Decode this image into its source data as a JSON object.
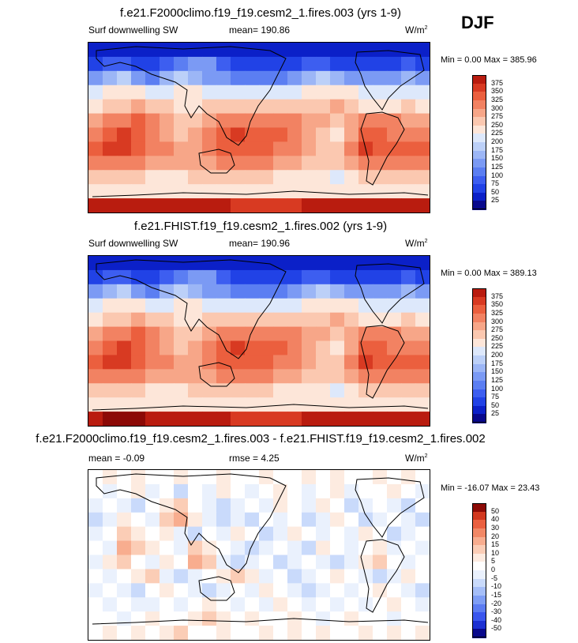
{
  "season": "DJF",
  "colors": {
    "sw_palette": [
      "#08088c",
      "#0b20c8",
      "#2142e6",
      "#3d5ef0",
      "#5b7ef2",
      "#7b9af4",
      "#9cb6f6",
      "#bcd0f8",
      "#dde8fb",
      "#fde6d9",
      "#fbc8b0",
      "#f7a688",
      "#f28262",
      "#eb5f3e",
      "#d83a22",
      "#b91c0f",
      "#8c0a06"
    ],
    "diff_palette": [
      "#08088c",
      "#1c30d2",
      "#3a56ee",
      "#5c7cf2",
      "#7f9ef5",
      "#a5bef8",
      "#c9dafb",
      "#eaf1fd",
      "#ffffff",
      "#fdebe0",
      "#fbcdb6",
      "#f8ad8f",
      "#f28866",
      "#ea6040",
      "#d2381f",
      "#8c0a06"
    ],
    "coast": "#000000"
  },
  "chart_data": [
    {
      "type": "heatmap",
      "name": "panel-1",
      "title": "f.e21.F2000climo.f19_f19.cesm2_1.fires.003 (yrs 1-9)",
      "variable": "Surf downwelling SW",
      "mean_label": "mean= 190.86",
      "units": "W/m",
      "units_sup": "2",
      "minmax_label": "Min =   0.00 Max = 385.96",
      "colorbar_labels": [
        "375",
        "350",
        "325",
        "300",
        "275",
        "250",
        "225",
        "200",
        "175",
        "150",
        "125",
        "100",
        "75",
        "50",
        "25"
      ],
      "grid": [
        [
          1,
          1,
          1,
          1,
          1,
          1,
          1,
          1,
          1,
          1,
          1,
          1,
          1,
          1,
          1,
          1,
          1,
          1,
          1,
          1,
          1,
          1,
          1,
          1
        ],
        [
          2,
          3,
          3,
          2,
          2,
          3,
          4,
          5,
          5,
          3,
          2,
          2,
          2,
          2,
          2,
          3,
          3,
          2,
          2,
          2,
          2,
          2,
          3,
          2
        ],
        [
          5,
          6,
          7,
          5,
          4,
          6,
          7,
          6,
          5,
          5,
          4,
          4,
          4,
          4,
          5,
          6,
          7,
          6,
          5,
          5,
          5,
          5,
          6,
          5
        ],
        [
          8,
          9,
          9,
          9,
          8,
          8,
          9,
          9,
          8,
          8,
          8,
          8,
          8,
          8,
          8,
          9,
          9,
          9,
          9,
          8,
          8,
          8,
          8,
          8
        ],
        [
          9,
          10,
          10,
          11,
          10,
          10,
          9,
          9,
          10,
          10,
          10,
          10,
          10,
          10,
          10,
          10,
          10,
          11,
          10,
          9,
          9,
          9,
          10,
          9
        ],
        [
          11,
          12,
          12,
          13,
          12,
          11,
          10,
          10,
          11,
          12,
          12,
          12,
          12,
          12,
          12,
          11,
          11,
          10,
          11,
          12,
          12,
          12,
          11,
          11
        ],
        [
          12,
          13,
          14,
          13,
          12,
          11,
          10,
          11,
          12,
          13,
          14,
          13,
          13,
          13,
          12,
          11,
          10,
          9,
          11,
          13,
          13,
          12,
          12,
          12
        ],
        [
          13,
          14,
          14,
          13,
          12,
          12,
          11,
          11,
          12,
          13,
          13,
          13,
          13,
          12,
          12,
          11,
          10,
          10,
          12,
          14,
          13,
          13,
          13,
          13
        ],
        [
          12,
          12,
          12,
          12,
          11,
          11,
          11,
          11,
          11,
          12,
          12,
          12,
          12,
          11,
          11,
          10,
          10,
          10,
          11,
          12,
          12,
          12,
          12,
          12
        ],
        [
          10,
          10,
          10,
          10,
          9,
          9,
          9,
          10,
          10,
          10,
          10,
          10,
          10,
          9,
          9,
          9,
          9,
          8,
          9,
          10,
          10,
          10,
          10,
          10
        ],
        [
          9,
          9,
          9,
          9,
          9,
          9,
          9,
          9,
          9,
          9,
          9,
          9,
          9,
          9,
          9,
          9,
          9,
          9,
          9,
          9,
          9,
          9,
          9,
          9
        ],
        [
          15,
          15,
          15,
          15,
          15,
          15,
          15,
          15,
          15,
          15,
          14,
          14,
          14,
          14,
          14,
          15,
          15,
          15,
          15,
          15,
          15,
          15,
          15,
          15
        ]
      ]
    },
    {
      "type": "heatmap",
      "name": "panel-2",
      "title": "f.e21.FHIST.f19_f19.cesm2_1.fires.002 (yrs 1-9)",
      "variable": "Surf downwelling SW",
      "mean_label": "mean= 190.96",
      "units": "W/m",
      "units_sup": "2",
      "minmax_label": "Min =   0.00 Max = 389.13",
      "colorbar_labels": [
        "375",
        "350",
        "325",
        "300",
        "275",
        "250",
        "225",
        "200",
        "175",
        "150",
        "125",
        "100",
        "75",
        "50",
        "25"
      ],
      "grid": [
        [
          1,
          1,
          1,
          1,
          1,
          1,
          1,
          1,
          1,
          1,
          1,
          1,
          1,
          1,
          1,
          1,
          1,
          1,
          1,
          1,
          1,
          1,
          1,
          1
        ],
        [
          2,
          3,
          3,
          2,
          2,
          3,
          4,
          5,
          5,
          3,
          2,
          2,
          2,
          2,
          2,
          3,
          3,
          2,
          2,
          2,
          2,
          2,
          3,
          2
        ],
        [
          5,
          6,
          7,
          5,
          4,
          6,
          7,
          6,
          5,
          5,
          4,
          4,
          4,
          4,
          5,
          6,
          7,
          6,
          5,
          5,
          5,
          5,
          6,
          5
        ],
        [
          8,
          9,
          9,
          9,
          8,
          8,
          9,
          9,
          8,
          8,
          8,
          8,
          8,
          8,
          8,
          9,
          9,
          9,
          9,
          8,
          8,
          8,
          8,
          8
        ],
        [
          9,
          10,
          10,
          11,
          10,
          10,
          9,
          9,
          10,
          10,
          10,
          10,
          10,
          10,
          10,
          10,
          10,
          11,
          10,
          9,
          9,
          9,
          10,
          9
        ],
        [
          11,
          12,
          12,
          13,
          12,
          11,
          10,
          10,
          11,
          12,
          12,
          12,
          12,
          12,
          12,
          11,
          11,
          10,
          11,
          12,
          12,
          12,
          11,
          11
        ],
        [
          12,
          13,
          14,
          13,
          12,
          11,
          10,
          11,
          12,
          13,
          14,
          13,
          13,
          13,
          12,
          11,
          10,
          9,
          11,
          13,
          13,
          12,
          12,
          12
        ],
        [
          13,
          14,
          14,
          13,
          12,
          12,
          11,
          11,
          12,
          13,
          13,
          13,
          13,
          12,
          12,
          11,
          10,
          10,
          12,
          14,
          13,
          13,
          13,
          13
        ],
        [
          12,
          12,
          12,
          12,
          11,
          11,
          11,
          11,
          11,
          12,
          12,
          12,
          12,
          11,
          11,
          10,
          10,
          10,
          11,
          12,
          12,
          12,
          12,
          12
        ],
        [
          10,
          10,
          10,
          10,
          9,
          9,
          9,
          10,
          10,
          10,
          10,
          10,
          10,
          9,
          9,
          9,
          9,
          8,
          9,
          10,
          10,
          10,
          10,
          10
        ],
        [
          9,
          9,
          9,
          9,
          9,
          9,
          9,
          9,
          9,
          9,
          9,
          9,
          9,
          9,
          9,
          9,
          9,
          9,
          9,
          9,
          9,
          9,
          9,
          9
        ],
        [
          15,
          16,
          16,
          16,
          15,
          15,
          15,
          15,
          15,
          15,
          14,
          14,
          14,
          14,
          14,
          15,
          15,
          15,
          15,
          15,
          15,
          15,
          15,
          15
        ]
      ]
    },
    {
      "type": "heatmap",
      "name": "panel-3",
      "title": "f.e21.F2000climo.f19_f19.cesm2_1.fires.003 - f.e21.FHIST.f19_f19.cesm2_1.fires.002",
      "mean_label": "mean =  -0.09",
      "rmse_label": "rmse =   4.25",
      "units": "W/m",
      "units_sup": "2",
      "minmax_label": "Min = -16.07 Max =  23.43",
      "colorbar_labels": [
        "50",
        "40",
        "30",
        "20",
        "15",
        "10",
        "5",
        "0",
        "-5",
        "-10",
        "-15",
        "-20",
        "-30",
        "-40",
        "-50"
      ],
      "grid": [
        [
          8,
          9,
          8,
          9,
          8,
          8,
          9,
          8,
          8,
          9,
          8,
          8,
          9,
          8,
          8,
          9,
          8,
          9,
          8,
          8,
          9,
          8,
          9,
          8
        ],
        [
          8,
          7,
          8,
          9,
          7,
          8,
          6,
          8,
          7,
          9,
          8,
          7,
          8,
          9,
          8,
          7,
          8,
          9,
          7,
          8,
          8,
          9,
          8,
          7
        ],
        [
          7,
          8,
          7,
          6,
          8,
          9,
          10,
          8,
          7,
          6,
          7,
          8,
          7,
          9,
          8,
          7,
          9,
          8,
          6,
          7,
          8,
          7,
          6,
          8
        ],
        [
          6,
          7,
          9,
          8,
          7,
          10,
          11,
          9,
          7,
          6,
          7,
          6,
          8,
          7,
          8,
          6,
          7,
          9,
          8,
          6,
          7,
          8,
          7,
          6
        ],
        [
          7,
          8,
          10,
          9,
          8,
          9,
          7,
          6,
          8,
          7,
          9,
          8,
          6,
          7,
          9,
          8,
          7,
          8,
          7,
          9,
          8,
          6,
          7,
          8
        ],
        [
          8,
          7,
          11,
          10,
          9,
          8,
          7,
          10,
          9,
          8,
          7,
          6,
          7,
          8,
          7,
          6,
          9,
          8,
          7,
          8,
          9,
          7,
          8,
          7
        ],
        [
          7,
          9,
          10,
          8,
          7,
          9,
          8,
          11,
          10,
          7,
          6,
          7,
          8,
          6,
          7,
          8,
          7,
          6,
          7,
          9,
          10,
          8,
          7,
          8
        ],
        [
          8,
          7,
          8,
          9,
          10,
          7,
          6,
          7,
          8,
          9,
          10,
          9,
          7,
          8,
          6,
          7,
          8,
          9,
          8,
          7,
          6,
          7,
          9,
          8
        ],
        [
          7,
          8,
          7,
          6,
          8,
          9,
          8,
          7,
          6,
          7,
          8,
          7,
          9,
          8,
          7,
          6,
          7,
          8,
          7,
          8,
          9,
          8,
          7,
          6
        ],
        [
          8,
          7,
          8,
          7,
          7,
          8,
          7,
          8,
          9,
          8,
          7,
          8,
          7,
          9,
          8,
          7,
          8,
          7,
          8,
          7,
          8,
          9,
          8,
          7
        ],
        [
          8,
          8,
          7,
          8,
          9,
          8,
          8,
          9,
          10,
          9,
          8,
          9,
          8,
          8,
          9,
          8,
          7,
          8,
          9,
          8,
          8,
          7,
          8,
          8
        ],
        [
          8,
          9,
          8,
          9,
          8,
          9,
          10,
          8,
          8,
          9,
          8,
          8,
          9,
          8,
          9,
          8,
          9,
          8,
          8,
          9,
          8,
          9,
          8,
          9
        ]
      ]
    }
  ]
}
